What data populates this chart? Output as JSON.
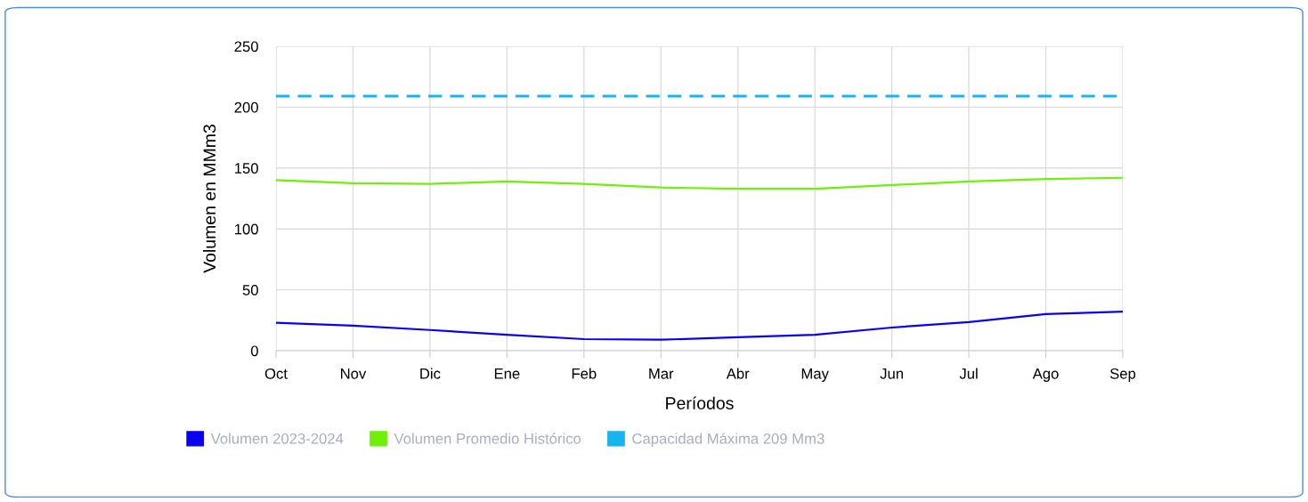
{
  "chart_data": {
    "type": "line",
    "xlabel": "Períodos",
    "ylabel": "Volumen en MMm3",
    "categories": [
      "Oct",
      "Nov",
      "Dic",
      "Ene",
      "Feb",
      "Mar",
      "Abr",
      "May",
      "Jun",
      "Jul",
      "Ago",
      "Sep"
    ],
    "series": [
      {
        "name": "Volumen 2023-2024",
        "color": "#0a00f0",
        "values": [
          23,
          20.5,
          17,
          13,
          9.5,
          9,
          11,
          13,
          19,
          23.5,
          30,
          32
        ]
      },
      {
        "name": "Volumen Promedio Histórico",
        "color": "#6ef00a",
        "values": [
          140,
          137.5,
          137,
          139,
          137,
          134,
          133,
          133,
          136,
          139,
          141,
          142
        ]
      },
      {
        "name": "Capacidad Máxima 209 Mm3",
        "color": "#18b4f0",
        "line_style": "dashed",
        "values": [
          209,
          209,
          209,
          209,
          209,
          209,
          209,
          209,
          209,
          209,
          209,
          209
        ]
      }
    ],
    "ylim": [
      0,
      250
    ],
    "yticks": [
      0,
      50,
      100,
      150,
      200,
      250
    ],
    "grid": true,
    "legend": "bottom"
  }
}
